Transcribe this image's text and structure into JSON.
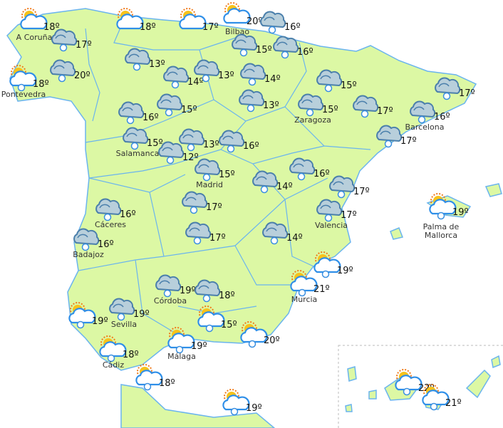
{
  "colors": {
    "land": "#dcf8a4",
    "border": "#6ab4ee",
    "sea": "#ffffff",
    "cloud": "#b8cfdb",
    "cloud_outline": "#4a7fab",
    "sun": "#f7c21b"
  },
  "icon_types": {
    "sc": "sun-cloud-icon",
    "scr": "sun-cloud-rain-icon",
    "r": "rain-cloud-icon"
  },
  "points": [
    {
      "icon": "sc",
      "temp": "18º",
      "label": "A Coruña"
    },
    {
      "icon": "r",
      "temp": "17º",
      "label": ""
    },
    {
      "icon": "sc",
      "temp": "18º",
      "label": ""
    },
    {
      "icon": "sc",
      "temp": "17º",
      "label": ""
    },
    {
      "icon": "sc",
      "temp": "20º",
      "label": "Bilbao"
    },
    {
      "icon": "r",
      "temp": "16º",
      "label": ""
    },
    {
      "icon": "r",
      "temp": "15º",
      "label": ""
    },
    {
      "icon": "r",
      "temp": "16º",
      "label": ""
    },
    {
      "icon": "scr",
      "temp": "18º",
      "label": "Pontevedra"
    },
    {
      "icon": "r",
      "temp": "20º",
      "label": ""
    },
    {
      "icon": "r",
      "temp": "13º",
      "label": ""
    },
    {
      "icon": "r",
      "temp": "14º",
      "label": ""
    },
    {
      "icon": "r",
      "temp": "13º",
      "label": ""
    },
    {
      "icon": "r",
      "temp": "14º",
      "label": ""
    },
    {
      "icon": "r",
      "temp": "15º",
      "label": ""
    },
    {
      "icon": "r",
      "temp": "17º",
      "label": ""
    },
    {
      "icon": "r",
      "temp": "13º",
      "label": ""
    },
    {
      "icon": "r",
      "temp": "15º",
      "label": ""
    },
    {
      "icon": "r",
      "temp": "16º",
      "label": ""
    },
    {
      "icon": "r",
      "temp": "15º",
      "label": "Zaragoza"
    },
    {
      "icon": "r",
      "temp": "17º",
      "label": ""
    },
    {
      "icon": "r",
      "temp": "16º",
      "label": "Barcelona"
    },
    {
      "icon": "r",
      "temp": "17º",
      "label": ""
    },
    {
      "icon": "r",
      "temp": "15º",
      "label": "Salamanca"
    },
    {
      "icon": "r",
      "temp": "12º",
      "label": ""
    },
    {
      "icon": "r",
      "temp": "13º",
      "label": ""
    },
    {
      "icon": "r",
      "temp": "16º",
      "label": ""
    },
    {
      "icon": "r",
      "temp": "15º",
      "label": "Madrid"
    },
    {
      "icon": "r",
      "temp": "14º",
      "label": ""
    },
    {
      "icon": "r",
      "temp": "16º",
      "label": ""
    },
    {
      "icon": "r",
      "temp": "17º",
      "label": ""
    },
    {
      "icon": "r",
      "temp": "16º",
      "label": "Cáceres"
    },
    {
      "icon": "r",
      "temp": "17º",
      "label": ""
    },
    {
      "icon": "r",
      "temp": "17º",
      "label": "Valencia"
    },
    {
      "icon": "scr",
      "temp": "19º",
      "label": "Palma de Mallorca"
    },
    {
      "icon": "r",
      "temp": "16º",
      "label": "Badajoz"
    },
    {
      "icon": "r",
      "temp": "17º",
      "label": ""
    },
    {
      "icon": "r",
      "temp": "14º",
      "label": ""
    },
    {
      "icon": "scr",
      "temp": "19º",
      "label": ""
    },
    {
      "icon": "scr",
      "temp": "21º",
      "label": "Murcia"
    },
    {
      "icon": "r",
      "temp": "19º",
      "label": "Córdoba"
    },
    {
      "icon": "r",
      "temp": "18º",
      "label": ""
    },
    {
      "icon": "r",
      "temp": "19º",
      "label": "Sevilla"
    },
    {
      "icon": "scr",
      "temp": "19º",
      "label": ""
    },
    {
      "icon": "scr",
      "temp": "15º",
      "label": ""
    },
    {
      "icon": "scr",
      "temp": "20º",
      "label": ""
    },
    {
      "icon": "scr",
      "temp": "19º",
      "label": "Málaga"
    },
    {
      "icon": "scr",
      "temp": "18º",
      "label": "Cádiz"
    },
    {
      "icon": "scr",
      "temp": "18º",
      "label": ""
    },
    {
      "icon": "scr",
      "temp": "19º",
      "label": ""
    },
    {
      "icon": "scr",
      "temp": "22º",
      "label": ""
    },
    {
      "icon": "scr",
      "temp": "21º",
      "label": ""
    }
  ]
}
